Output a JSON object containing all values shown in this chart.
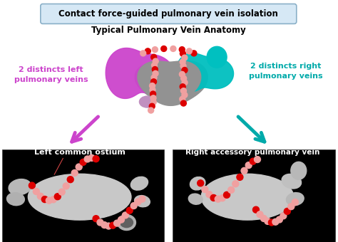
{
  "bg_color": "#ffffff",
  "title_box_text": "Contact force-guided pulmonary vein isolation",
  "title_box_bg": "#d6e8f5",
  "title_box_border": "#8ab0c8",
  "subtitle_text": "Typical Pulmonary Vein Anatomy",
  "left_label": "2 distincts left\npulmonary veins",
  "left_label_color": "#cc44cc",
  "right_label": "2 distincts right\npulmonary veins",
  "right_label_color": "#00aaaa",
  "bottom_left_title": "Left common ostium",
  "bottom_right_title": "Right accessory pulmonary vein",
  "arrow_left_color": "#cc44cc",
  "arrow_right_color": "#00aaaa",
  "la_gray": "#9a9a9a",
  "purple_vein": "#cc44cc",
  "cyan_vein": "#00bfbf",
  "dot_red": "#dd0000",
  "dot_pink": "#f0a0a0"
}
